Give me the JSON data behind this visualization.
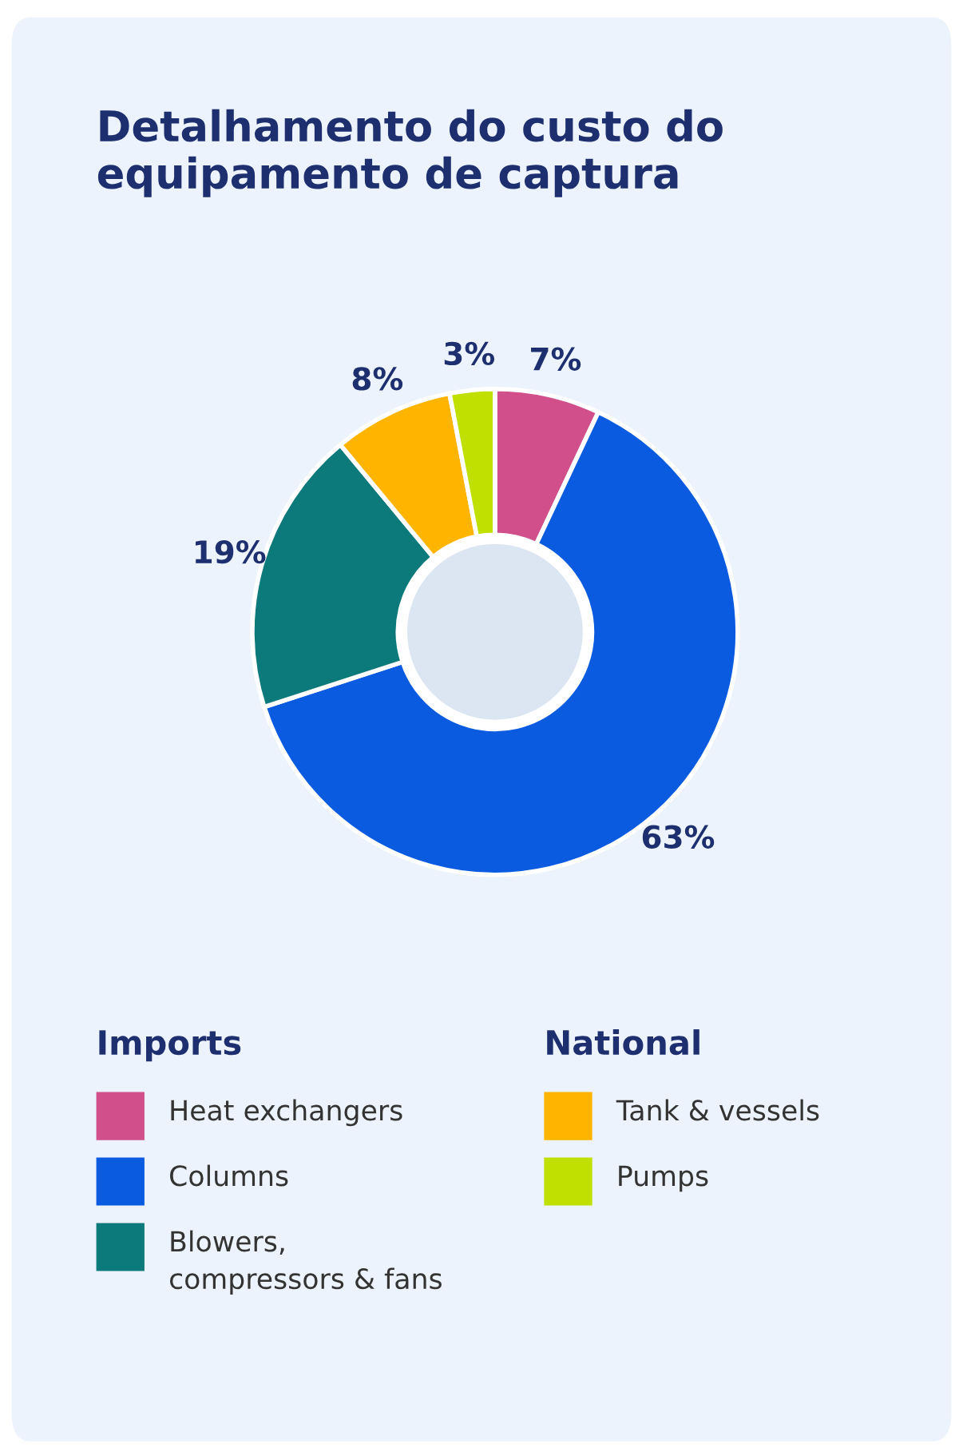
{
  "chart_data": {
    "type": "donut",
    "title": "Detalhamento do custo do equipamento de captura",
    "categories": [
      "Heat exchangers",
      "Columns",
      "Blowers,\ncompressors & fans",
      "Tank & vessels",
      "Pumps"
    ],
    "values": [
      7,
      63,
      19,
      8,
      3
    ],
    "value_labels": [
      "7%",
      "63%",
      "19%",
      "8%",
      "3%"
    ],
    "colors": [
      "#d14f8a",
      "#0a5be0",
      "#0c7a7a",
      "#ffb400",
      "#bfe000"
    ],
    "annotations": [
      "Imports",
      "National"
    ],
    "legend": "bottom"
  }
}
